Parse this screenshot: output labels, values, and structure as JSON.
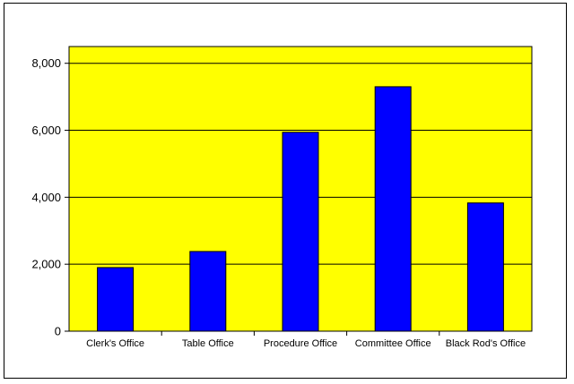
{
  "colors": {
    "plot_background": "#ffff00",
    "bar_fill": "#0000ff",
    "bar_stroke": "#000000",
    "gridline": "#000000"
  },
  "chart_data": {
    "type": "bar",
    "title": "",
    "xlabel": "",
    "ylabel": "",
    "categories": [
      "Clerk's Office",
      "Table Office",
      "Procedure Office",
      "Committee Office",
      "Black Rod's Office"
    ],
    "values": [
      1900,
      2380,
      5940,
      7300,
      3830
    ],
    "ylim": [
      0,
      8500
    ],
    "yticks": [
      0,
      2000,
      4000,
      6000,
      8000
    ],
    "ytick_labels": [
      "0",
      "2,000",
      "4,000",
      "6,000",
      "8,000"
    ],
    "grid": true,
    "legend": "none"
  }
}
